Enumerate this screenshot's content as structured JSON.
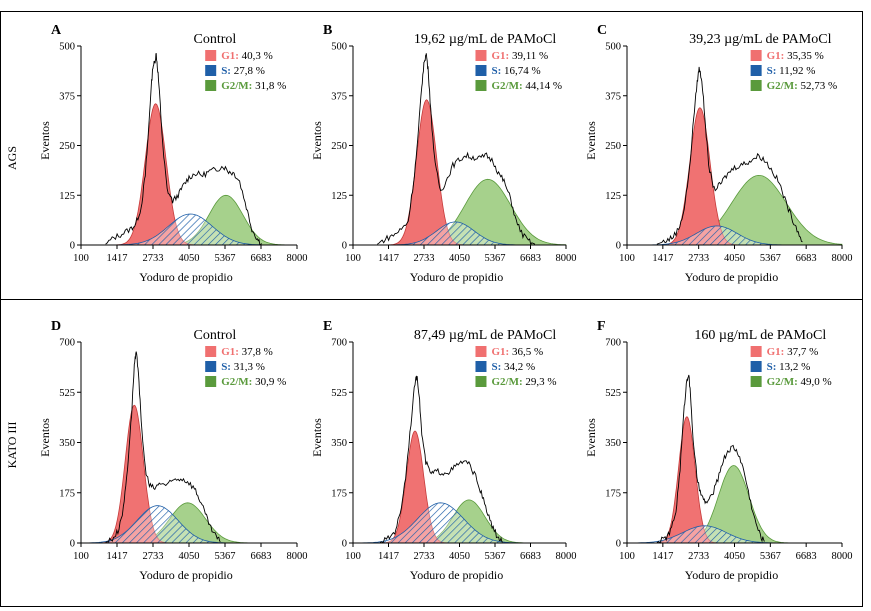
{
  "figure": {
    "row_labels": [
      "AGS",
      "KATO III"
    ]
  },
  "chart_data": [
    {
      "type": "area",
      "panel_letter": "A",
      "title": "Control",
      "xlabel": "Yoduro de propidio",
      "ylabel": "Eventos",
      "xlim": [
        100,
        8000
      ],
      "ylim": [
        0,
        500
      ],
      "xticks": [
        "100",
        "1417",
        "2733",
        "4050",
        "5367",
        "6683",
        "8000"
      ],
      "yticks": [
        "0",
        "125",
        "250",
        "375",
        "500"
      ],
      "legend": [
        {
          "label": "G1:",
          "value": "40,3 %",
          "color": "#f07070"
        },
        {
          "label": "S:",
          "value": "27,8 %",
          "color": "#1f5fa8"
        },
        {
          "label": "G2/M:",
          "value": "31,8 %",
          "color": "#5a9a3c"
        }
      ],
      "g1": {
        "peak_x": 2830,
        "height": 355,
        "sigma": 380
      },
      "s": {
        "center_x": 4100,
        "height": 78,
        "sigma": 800
      },
      "g2m": {
        "peak_x": 5400,
        "height": 125,
        "sigma": 620
      },
      "histogram": [
        [
          1000,
          2
        ],
        [
          1300,
          18
        ],
        [
          1600,
          28
        ],
        [
          1900,
          40
        ],
        [
          2100,
          52
        ],
        [
          2300,
          95
        ],
        [
          2450,
          175
        ],
        [
          2550,
          265
        ],
        [
          2650,
          380
        ],
        [
          2730,
          450
        ],
        [
          2800,
          460
        ],
        [
          2850,
          480
        ],
        [
          2920,
          430
        ],
        [
          3000,
          350
        ],
        [
          3100,
          240
        ],
        [
          3250,
          140
        ],
        [
          3450,
          110
        ],
        [
          3650,
          125
        ],
        [
          3850,
          150
        ],
        [
          4050,
          170
        ],
        [
          4300,
          180
        ],
        [
          4550,
          175
        ],
        [
          4800,
          185
        ],
        [
          5050,
          190
        ],
        [
          5300,
          198
        ],
        [
          5500,
          185
        ],
        [
          5700,
          180
        ],
        [
          5900,
          160
        ],
        [
          6150,
          95
        ],
        [
          6350,
          40
        ],
        [
          6550,
          15
        ],
        [
          6700,
          4
        ]
      ]
    },
    {
      "type": "area",
      "panel_letter": "B",
      "title": "19,62 µg/mL de PAMoCl",
      "xlabel": "Yoduro de propidio",
      "ylabel": "Eventos",
      "xlim": [
        100,
        8000
      ],
      "ylim": [
        0,
        500
      ],
      "xticks": [
        "100",
        "1417",
        "2733",
        "4050",
        "5367",
        "6683",
        "8000"
      ],
      "yticks": [
        "0",
        "125",
        "250",
        "375",
        "500"
      ],
      "legend": [
        {
          "label": "G1:",
          "value": "39,11 %",
          "color": "#f07070"
        },
        {
          "label": "S:",
          "value": "16,74 %",
          "color": "#1f5fa8"
        },
        {
          "label": "G2/M:",
          "value": "44,14 %",
          "color": "#5a9a3c"
        }
      ],
      "g1": {
        "peak_x": 2830,
        "height": 365,
        "sigma": 370
      },
      "s": {
        "center_x": 3900,
        "height": 58,
        "sigma": 700
      },
      "g2m": {
        "peak_x": 5100,
        "height": 165,
        "sigma": 850
      },
      "histogram": [
        [
          1000,
          2
        ],
        [
          1300,
          15
        ],
        [
          1600,
          25
        ],
        [
          1900,
          40
        ],
        [
          2150,
          60
        ],
        [
          2350,
          160
        ],
        [
          2500,
          260
        ],
        [
          2650,
          400
        ],
        [
          2750,
          465
        ],
        [
          2820,
          480
        ],
        [
          2900,
          430
        ],
        [
          3000,
          320
        ],
        [
          3150,
          200
        ],
        [
          3350,
          135
        ],
        [
          3550,
          160
        ],
        [
          3800,
          200
        ],
        [
          4050,
          215
        ],
        [
          4300,
          225
        ],
        [
          4550,
          220
        ],
        [
          4800,
          218
        ],
        [
          5050,
          225
        ],
        [
          5300,
          210
        ],
        [
          5500,
          180
        ],
        [
          5700,
          160
        ],
        [
          5950,
          115
        ],
        [
          6150,
          60
        ],
        [
          6400,
          25
        ],
        [
          6650,
          8
        ],
        [
          6850,
          2
        ]
      ]
    },
    {
      "type": "area",
      "panel_letter": "C",
      "title": "39,23 µg/mL de PAMoCl",
      "xlabel": "Yoduro de propidio",
      "ylabel": "Eventos",
      "xlim": [
        100,
        8000
      ],
      "ylim": [
        0,
        500
      ],
      "xticks": [
        "100",
        "1417",
        "2733",
        "4050",
        "5367",
        "6683",
        "8000"
      ],
      "yticks": [
        "0",
        "125",
        "250",
        "375",
        "500"
      ],
      "legend": [
        {
          "label": "G1:",
          "value": "35,35 %",
          "color": "#f07070"
        },
        {
          "label": "S:",
          "value": "11,92 %",
          "color": "#1f5fa8"
        },
        {
          "label": "G2/M:",
          "value": "52,73 %",
          "color": "#5a9a3c"
        }
      ],
      "g1": {
        "peak_x": 2780,
        "height": 345,
        "sigma": 370
      },
      "s": {
        "center_x": 3400,
        "height": 48,
        "sigma": 750
      },
      "g2m": {
        "peak_x": 4950,
        "height": 175,
        "sigma": 1000
      },
      "histogram": [
        [
          1200,
          2
        ],
        [
          1500,
          10
        ],
        [
          1750,
          18
        ],
        [
          2000,
          40
        ],
        [
          2200,
          90
        ],
        [
          2400,
          190
        ],
        [
          2550,
          320
        ],
        [
          2680,
          410
        ],
        [
          2750,
          445
        ],
        [
          2850,
          415
        ],
        [
          2950,
          330
        ],
        [
          3100,
          200
        ],
        [
          3300,
          140
        ],
        [
          3500,
          150
        ],
        [
          3700,
          170
        ],
        [
          3950,
          190
        ],
        [
          4200,
          200
        ],
        [
          4450,
          205
        ],
        [
          4700,
          215
        ],
        [
          4950,
          225
        ],
        [
          5200,
          210
        ],
        [
          5450,
          185
        ],
        [
          5700,
          155
        ],
        [
          5950,
          105
        ],
        [
          6150,
          70
        ],
        [
          6350,
          40
        ],
        [
          6550,
          8
        ]
      ]
    },
    {
      "type": "area",
      "panel_letter": "D",
      "title": "Control",
      "xlabel": "Yoduro de propidio",
      "ylabel": "Eventos",
      "xlim": [
        100,
        8000
      ],
      "ylim": [
        0,
        700
      ],
      "xticks": [
        "100",
        "1417",
        "2733",
        "4050",
        "5367",
        "6683",
        "8000"
      ],
      "yticks": [
        "0",
        "175",
        "350",
        "525",
        "700"
      ],
      "legend": [
        {
          "label": "G1:",
          "value": "37,8 %",
          "color": "#f07070"
        },
        {
          "label": "S:",
          "value": "31,3 %",
          "color": "#1f5fa8"
        },
        {
          "label": "G2/M:",
          "value": "30,9 %",
          "color": "#5a9a3c"
        }
      ],
      "g1": {
        "peak_x": 2050,
        "height": 480,
        "sigma": 330
      },
      "s": {
        "center_x": 2900,
        "height": 130,
        "sigma": 750
      },
      "g2m": {
        "peak_x": 4000,
        "height": 140,
        "sigma": 650
      },
      "histogram": [
        [
          1000,
          2
        ],
        [
          1250,
          15
        ],
        [
          1450,
          40
        ],
        [
          1650,
          120
        ],
        [
          1800,
          260
        ],
        [
          1950,
          450
        ],
        [
          2050,
          620
        ],
        [
          2120,
          660
        ],
        [
          2200,
          600
        ],
        [
          2300,
          420
        ],
        [
          2450,
          260
        ],
        [
          2600,
          200
        ],
        [
          2800,
          190
        ],
        [
          3000,
          210
        ],
        [
          3250,
          200
        ],
        [
          3500,
          220
        ],
        [
          3750,
          225
        ],
        [
          4000,
          215
        ],
        [
          4250,
          190
        ],
        [
          4450,
          150
        ],
        [
          4650,
          100
        ],
        [
          4850,
          50
        ],
        [
          5050,
          20
        ],
        [
          5200,
          5
        ]
      ]
    },
    {
      "type": "area",
      "panel_letter": "E",
      "title": "87,49 µg/mL de PAMoCl",
      "xlabel": "Yoduro de propidio",
      "ylabel": "Eventos",
      "xlim": [
        100,
        8000
      ],
      "ylim": [
        0,
        700
      ],
      "xticks": [
        "100",
        "1417",
        "2733",
        "4050",
        "5367",
        "6683",
        "8000"
      ],
      "yticks": [
        "0",
        "175",
        "350",
        "525",
        "700"
      ],
      "legend": [
        {
          "label": "G1:",
          "value": "36,5 %",
          "color": "#f07070"
        },
        {
          "label": "S:",
          "value": "34,2 %",
          "color": "#1f5fa8"
        },
        {
          "label": "G2/M:",
          "value": "29,3 %",
          "color": "#5a9a3c"
        }
      ],
      "g1": {
        "peak_x": 2400,
        "height": 390,
        "sigma": 320
      },
      "s": {
        "center_x": 3350,
        "height": 140,
        "sigma": 850
      },
      "g2m": {
        "peak_x": 4400,
        "height": 150,
        "sigma": 600
      },
      "histogram": [
        [
          1100,
          2
        ],
        [
          1400,
          15
        ],
        [
          1650,
          40
        ],
        [
          1850,
          100
        ],
        [
          2050,
          230
        ],
        [
          2250,
          420
        ],
        [
          2400,
          560
        ],
        [
          2480,
          580
        ],
        [
          2550,
          520
        ],
        [
          2650,
          380
        ],
        [
          2800,
          280
        ],
        [
          3000,
          240
        ],
        [
          3200,
          250
        ],
        [
          3450,
          245
        ],
        [
          3700,
          250
        ],
        [
          3950,
          270
        ],
        [
          4200,
          285
        ],
        [
          4450,
          270
        ],
        [
          4700,
          220
        ],
        [
          4900,
          160
        ],
        [
          5100,
          100
        ],
        [
          5300,
          50
        ],
        [
          5500,
          15
        ],
        [
          5650,
          3
        ]
      ]
    },
    {
      "type": "area",
      "panel_letter": "F",
      "title": "160 µg/mL de PAMoCl",
      "xlabel": "Yoduro de propidio",
      "ylabel": "Eventos",
      "xlim": [
        100,
        8000
      ],
      "ylim": [
        0,
        700
      ],
      "xticks": [
        "100",
        "1417",
        "2733",
        "4050",
        "5367",
        "6683",
        "8000"
      ],
      "yticks": [
        "0",
        "175",
        "350",
        "525",
        "700"
      ],
      "legend": [
        {
          "label": "G1:",
          "value": "37,7 %",
          "color": "#f07070"
        },
        {
          "label": "S:",
          "value": "13,2 %",
          "color": "#1f5fa8"
        },
        {
          "label": "G2/M:",
          "value": "49,0 %",
          "color": "#5a9a3c"
        }
      ],
      "g1": {
        "peak_x": 2300,
        "height": 440,
        "sigma": 300
      },
      "s": {
        "center_x": 2950,
        "height": 60,
        "sigma": 800
      },
      "g2m": {
        "peak_x": 4020,
        "height": 270,
        "sigma": 560
      },
      "histogram": [
        [
          1200,
          2
        ],
        [
          1500,
          15
        ],
        [
          1700,
          40
        ],
        [
          1900,
          110
        ],
        [
          2050,
          260
        ],
        [
          2200,
          470
        ],
        [
          2300,
          570
        ],
        [
          2370,
          590
        ],
        [
          2450,
          490
        ],
        [
          2550,
          330
        ],
        [
          2700,
          210
        ],
        [
          2850,
          160
        ],
        [
          3000,
          140
        ],
        [
          3200,
          160
        ],
        [
          3400,
          210
        ],
        [
          3600,
          280
        ],
        [
          3800,
          320
        ],
        [
          4000,
          335
        ],
        [
          4200,
          310
        ],
        [
          4400,
          250
        ],
        [
          4600,
          160
        ],
        [
          4800,
          80
        ],
        [
          5000,
          25
        ],
        [
          5150,
          5
        ]
      ]
    }
  ]
}
